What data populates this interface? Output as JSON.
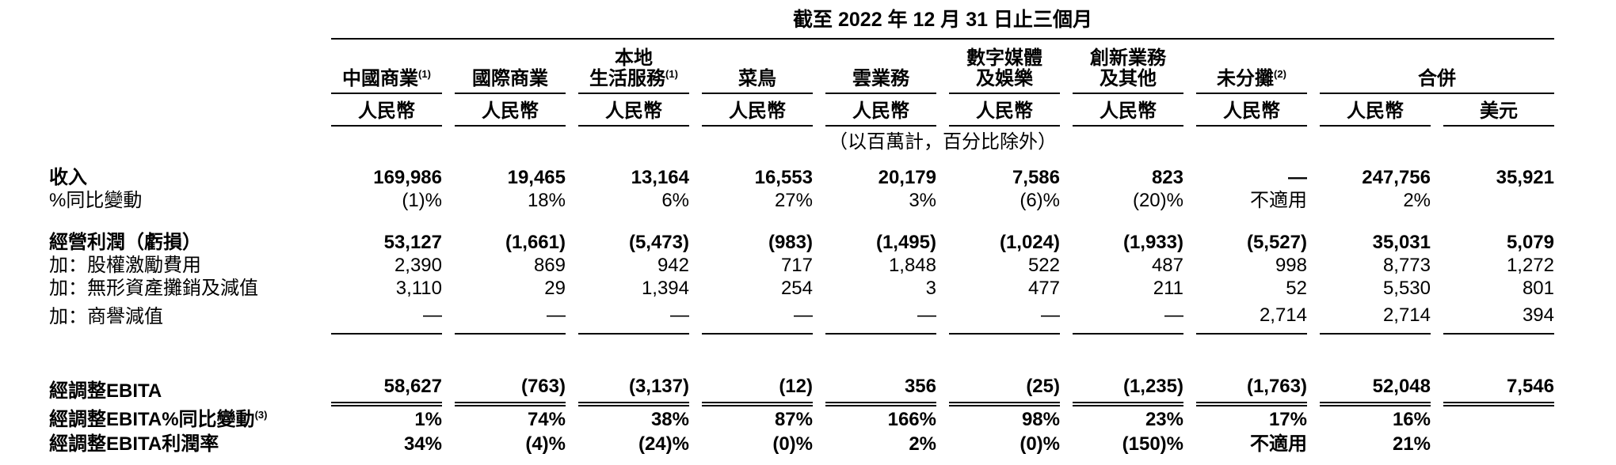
{
  "table": {
    "title": "截至 2022 年 12 月 31 日止三個月",
    "unit_note": "（以百萬計，百分比除外）",
    "consolidated_label": "合併",
    "currency_rmb": "人民幣",
    "currency_usd": "美元",
    "segments": [
      {
        "line1": "中國商業",
        "sup": "(1)"
      },
      {
        "line1": "國際商業"
      },
      {
        "line1": "本地",
        "line2": "生活服務",
        "sup": "(1)"
      },
      {
        "line1": "菜鳥"
      },
      {
        "line1": "雲業務"
      },
      {
        "line1": "數字媒體",
        "line2": "及娛樂"
      },
      {
        "line1": "創新業務",
        "line2": "及其他"
      },
      {
        "line1": "未分攤",
        "sup": "(2)"
      }
    ],
    "rows": {
      "revenue": {
        "label": "收入",
        "values": [
          "169,986",
          "19,465",
          "13,164",
          "16,553",
          "20,179",
          "7,586",
          "823",
          "—",
          "247,756",
          "35,921"
        ]
      },
      "revenue_yoy": {
        "label": "%同比變動",
        "values": [
          "(1)%",
          "18%",
          "6%",
          "27%",
          "3%",
          "(6)%",
          "(20)%",
          "不適用",
          "2%",
          ""
        ]
      },
      "op_income": {
        "label": "經營利潤（虧損）",
        "values": [
          "53,127",
          "(1,661)",
          "(5,473)",
          "(983)",
          "(1,495)",
          "(1,024)",
          "(1,933)",
          "(5,527)",
          "35,031",
          "5,079"
        ]
      },
      "sbc": {
        "label": "加：股權激勵費用",
        "values": [
          "2,390",
          "869",
          "942",
          "717",
          "1,848",
          "522",
          "487",
          "998",
          "8,773",
          "1,272"
        ]
      },
      "amortization": {
        "label": "加：無形資產攤銷及減值",
        "values": [
          "3,110",
          "29",
          "1,394",
          "254",
          "3",
          "477",
          "211",
          "52",
          "5,530",
          "801"
        ]
      },
      "goodwill": {
        "label": "加：商譽減值",
        "values": [
          "—",
          "—",
          "—",
          "—",
          "—",
          "—",
          "—",
          "2,714",
          "2,714",
          "394"
        ]
      },
      "adj_ebita": {
        "label": "經調整EBITA",
        "values": [
          "58,627",
          "(763)",
          "(3,137)",
          "(12)",
          "356",
          "(25)",
          "(1,235)",
          "(1,763)",
          "52,048",
          "7,546"
        ]
      },
      "adj_ebita_yoy": {
        "label": "經調整EBITA%同比變動",
        "sup": "(3)",
        "values": [
          "1%",
          "74%",
          "38%",
          "87%",
          "166%",
          "98%",
          "23%",
          "17%",
          "16%",
          ""
        ]
      },
      "adj_ebita_margin": {
        "label": "經調整EBITA利潤率",
        "values": [
          "34%",
          "(4)%",
          "(24)%",
          "(0)%",
          "2%",
          "(0)%",
          "(150)%",
          "不適用",
          "21%",
          ""
        ]
      }
    }
  }
}
